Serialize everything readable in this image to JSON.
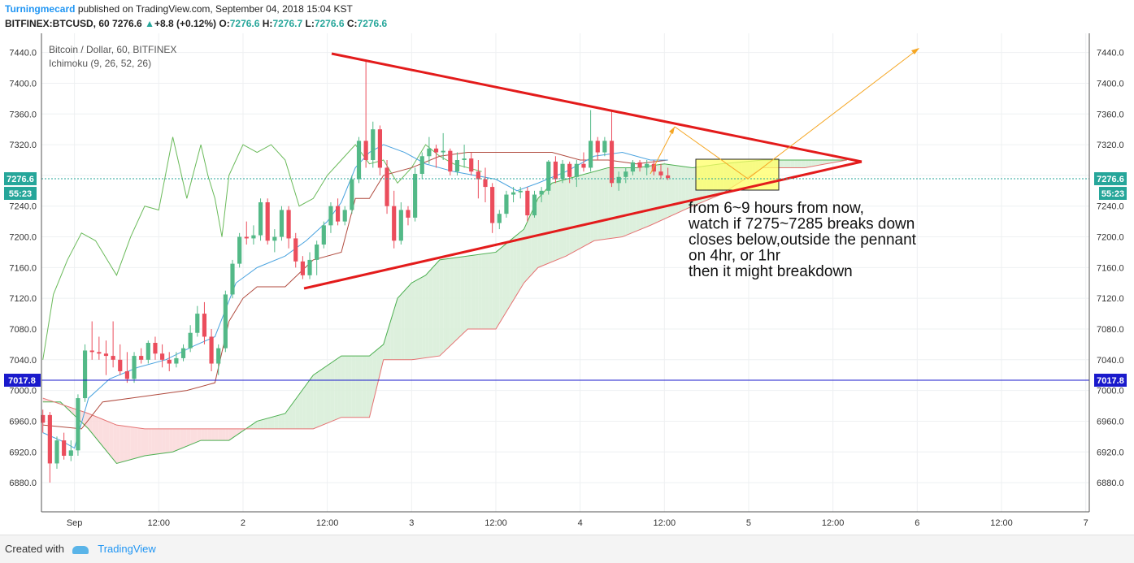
{
  "header": {
    "author": "Turningmecard",
    "published": "published on TradingView.com, September 04, 2018 15:04 KST",
    "symbol": "BITFINEX:BTCUSD, 60",
    "last": "7276.6",
    "change": "+8.8 (+0.12%)",
    "open_label": "O:",
    "open": "7276.6",
    "high_label": "H:",
    "high": "7276.7",
    "low_label": "L:",
    "low": "7276.6",
    "close_label": "C:",
    "close": "7276.6"
  },
  "legend": {
    "title": "Bitcoin / Dollar, 60, BITFINEX",
    "indicator": "Ichimoku (9, 26, 52, 26)"
  },
  "price_tags": {
    "last_price": "7276.6",
    "countdown": "55:23",
    "hline": "7017.8"
  },
  "annotation": {
    "lines": [
      "from 6~9 hours from now,",
      "watch if 7275~7285 breaks down",
      "closes below,outside the pennant",
      "on 4hr, or 1hr",
      "then it might breakdown"
    ]
  },
  "footer": {
    "created_with": "Created with",
    "logo": "TradingView"
  },
  "colors": {
    "up": "#53b987",
    "down": "#eb4d5c",
    "trendline": "#e31b1b",
    "arrow": "#f5a623",
    "hline": "#1a1acc",
    "cloud_bull": "#d9eed9",
    "cloud_bear": "#fbdadb",
    "tenkan": "#4aa3df",
    "kijun": "#b04a3e",
    "chikou": "#6aba5a",
    "highlight": "#ffff66"
  },
  "chart_data": {
    "type": "candlestick",
    "y_axis": {
      "ticks": [
        6880,
        6920,
        6960,
        7000,
        7040,
        7080,
        7120,
        7160,
        7200,
        7240,
        7280,
        7320,
        7360,
        7400,
        7440
      ],
      "tick_labels": [
        "6880.0",
        "6920.0",
        "6960.0",
        "7000.0",
        "7040.0",
        "7080.0",
        "7120.0",
        "7160.0",
        "7200.0",
        "7240.0",
        "7280.0",
        "7320.0",
        "7360.0",
        "7400.0",
        "7440.0"
      ],
      "range": [
        6842,
        7465
      ]
    },
    "x_axis": {
      "tick_labels": [
        "Sep",
        "12:00",
        "2",
        "12:00",
        "3",
        "12:00",
        "4",
        "12:00",
        "5",
        "12:00",
        "6",
        "12:00",
        "7"
      ],
      "tick_hours": [
        0,
        12,
        24,
        36,
        48,
        60,
        72,
        84,
        96,
        108,
        120,
        132,
        144
      ],
      "range_hours": [
        -4.7,
        144.5
      ]
    },
    "candles": [
      {
        "h": -4.5,
        "o": 6968,
        "hi": 6975,
        "lo": 6945,
        "c": 6958
      },
      {
        "h": -3.5,
        "o": 6968,
        "hi": 6972,
        "lo": 6880,
        "c": 6905
      },
      {
        "h": -2.5,
        "o": 6905,
        "hi": 6940,
        "lo": 6898,
        "c": 6935
      },
      {
        "h": -1.5,
        "o": 6935,
        "hi": 6945,
        "lo": 6910,
        "c": 6915
      },
      {
        "h": -0.5,
        "o": 6915,
        "hi": 6935,
        "lo": 6908,
        "c": 6922
      },
      {
        "h": 0.5,
        "o": 6922,
        "hi": 6995,
        "lo": 6915,
        "c": 6990
      },
      {
        "h": 1.5,
        "o": 6990,
        "hi": 7060,
        "lo": 6985,
        "c": 7052
      },
      {
        "h": 2.5,
        "o": 7052,
        "hi": 7090,
        "lo": 7040,
        "c": 7050
      },
      {
        "h": 3.5,
        "o": 7050,
        "hi": 7070,
        "lo": 7040,
        "c": 7048
      },
      {
        "h": 4.5,
        "o": 7048,
        "hi": 7065,
        "lo": 7020,
        "c": 7045
      },
      {
        "h": 5.5,
        "o": 7045,
        "hi": 7090,
        "lo": 7030,
        "c": 7040
      },
      {
        "h": 6.5,
        "o": 7040,
        "hi": 7060,
        "lo": 7020,
        "c": 7025
      },
      {
        "h": 7.5,
        "o": 7025,
        "hi": 7050,
        "lo": 7010,
        "c": 7015
      },
      {
        "h": 8.5,
        "o": 7015,
        "hi": 7050,
        "lo": 7010,
        "c": 7045
      },
      {
        "h": 9.5,
        "o": 7045,
        "hi": 7055,
        "lo": 7035,
        "c": 7040
      },
      {
        "h": 10.5,
        "o": 7040,
        "hi": 7065,
        "lo": 7035,
        "c": 7062
      },
      {
        "h": 11.5,
        "o": 7062,
        "hi": 7070,
        "lo": 7040,
        "c": 7048
      },
      {
        "h": 12.5,
        "o": 7048,
        "hi": 7060,
        "lo": 7030,
        "c": 7040
      },
      {
        "h": 13.5,
        "o": 7040,
        "hi": 7050,
        "lo": 7025,
        "c": 7035
      },
      {
        "h": 14.5,
        "o": 7035,
        "hi": 7050,
        "lo": 7030,
        "c": 7042
      },
      {
        "h": 15.5,
        "o": 7042,
        "hi": 7060,
        "lo": 7038,
        "c": 7055
      },
      {
        "h": 16.5,
        "o": 7055,
        "hi": 7085,
        "lo": 7050,
        "c": 7075
      },
      {
        "h": 17.5,
        "o": 7075,
        "hi": 7110,
        "lo": 7070,
        "c": 7100
      },
      {
        "h": 18.5,
        "o": 7100,
        "hi": 7115,
        "lo": 7060,
        "c": 7070
      },
      {
        "h": 19.5,
        "o": 7070,
        "hi": 7080,
        "lo": 7025,
        "c": 7035
      },
      {
        "h": 20.5,
        "o": 7035,
        "hi": 7060,
        "lo": 7020,
        "c": 7055
      },
      {
        "h": 21.5,
        "o": 7055,
        "hi": 7130,
        "lo": 7050,
        "c": 7125
      },
      {
        "h": 22.5,
        "o": 7125,
        "hi": 7170,
        "lo": 7120,
        "c": 7165
      },
      {
        "h": 23.5,
        "o": 7165,
        "hi": 7205,
        "lo": 7160,
        "c": 7200
      },
      {
        "h": 24.5,
        "o": 7200,
        "hi": 7220,
        "lo": 7190,
        "c": 7198
      },
      {
        "h": 25.5,
        "o": 7198,
        "hi": 7215,
        "lo": 7190,
        "c": 7202
      },
      {
        "h": 26.5,
        "o": 7202,
        "hi": 7250,
        "lo": 7195,
        "c": 7245
      },
      {
        "h": 27.5,
        "o": 7245,
        "hi": 7250,
        "lo": 7190,
        "c": 7195
      },
      {
        "h": 28.5,
        "o": 7195,
        "hi": 7210,
        "lo": 7180,
        "c": 7200
      },
      {
        "h": 29.5,
        "o": 7200,
        "hi": 7240,
        "lo": 7195,
        "c": 7235
      },
      {
        "h": 30.5,
        "o": 7235,
        "hi": 7240,
        "lo": 7185,
        "c": 7198
      },
      {
        "h": 31.5,
        "o": 7198,
        "hi": 7205,
        "lo": 7160,
        "c": 7168
      },
      {
        "h": 32.5,
        "o": 7168,
        "hi": 7175,
        "lo": 7145,
        "c": 7150
      },
      {
        "h": 33.5,
        "o": 7150,
        "hi": 7180,
        "lo": 7145,
        "c": 7170
      },
      {
        "h": 34.5,
        "o": 7170,
        "hi": 7195,
        "lo": 7150,
        "c": 7190
      },
      {
        "h": 35.5,
        "o": 7190,
        "hi": 7220,
        "lo": 7185,
        "c": 7215
      },
      {
        "h": 36.5,
        "o": 7215,
        "hi": 7245,
        "lo": 7205,
        "c": 7240
      },
      {
        "h": 37.5,
        "o": 7240,
        "hi": 7250,
        "lo": 7215,
        "c": 7220
      },
      {
        "h": 38.5,
        "o": 7220,
        "hi": 7240,
        "lo": 7215,
        "c": 7235
      },
      {
        "h": 39.5,
        "o": 7235,
        "hi": 7280,
        "lo": 7230,
        "c": 7275
      },
      {
        "h": 40.5,
        "o": 7275,
        "hi": 7330,
        "lo": 7270,
        "c": 7325
      },
      {
        "h": 41.5,
        "o": 7325,
        "hi": 7430,
        "lo": 7290,
        "c": 7300
      },
      {
        "h": 42.5,
        "o": 7300,
        "hi": 7350,
        "lo": 7290,
        "c": 7340
      },
      {
        "h": 43.5,
        "o": 7340,
        "hi": 7345,
        "lo": 7280,
        "c": 7290
      },
      {
        "h": 44.5,
        "o": 7290,
        "hi": 7300,
        "lo": 7230,
        "c": 7240
      },
      {
        "h": 45.5,
        "o": 7240,
        "hi": 7260,
        "lo": 7185,
        "c": 7195
      },
      {
        "h": 46.5,
        "o": 7195,
        "hi": 7245,
        "lo": 7190,
        "c": 7235
      },
      {
        "h": 47.5,
        "o": 7235,
        "hi": 7240,
        "lo": 7215,
        "c": 7225
      },
      {
        "h": 48.5,
        "o": 7225,
        "hi": 7290,
        "lo": 7220,
        "c": 7282
      },
      {
        "h": 49.5,
        "o": 7282,
        "hi": 7310,
        "lo": 7275,
        "c": 7305
      },
      {
        "h": 50.5,
        "o": 7305,
        "hi": 7330,
        "lo": 7295,
        "c": 7315
      },
      {
        "h": 51.5,
        "o": 7315,
        "hi": 7320,
        "lo": 7290,
        "c": 7310
      },
      {
        "h": 52.5,
        "o": 7310,
        "hi": 7335,
        "lo": 7300,
        "c": 7312
      },
      {
        "h": 53.5,
        "o": 7312,
        "hi": 7315,
        "lo": 7280,
        "c": 7285
      },
      {
        "h": 54.5,
        "o": 7285,
        "hi": 7310,
        "lo": 7280,
        "c": 7300
      },
      {
        "h": 55.5,
        "o": 7300,
        "hi": 7320,
        "lo": 7290,
        "c": 7302
      },
      {
        "h": 56.5,
        "o": 7302,
        "hi": 7310,
        "lo": 7280,
        "c": 7285
      },
      {
        "h": 57.5,
        "o": 7285,
        "hi": 7300,
        "lo": 7250,
        "c": 7275
      },
      {
        "h": 58.5,
        "o": 7275,
        "hi": 7290,
        "lo": 7245,
        "c": 7265
      },
      {
        "h": 59.5,
        "o": 7265,
        "hi": 7270,
        "lo": 7205,
        "c": 7218
      },
      {
        "h": 60.5,
        "o": 7218,
        "hi": 7235,
        "lo": 7210,
        "c": 7230
      },
      {
        "h": 61.5,
        "o": 7230,
        "hi": 7260,
        "lo": 7225,
        "c": 7255
      },
      {
        "h": 62.5,
        "o": 7255,
        "hi": 7265,
        "lo": 7245,
        "c": 7258
      },
      {
        "h": 63.5,
        "o": 7258,
        "hi": 7265,
        "lo": 7250,
        "c": 7260
      },
      {
        "h": 64.5,
        "o": 7260,
        "hi": 7265,
        "lo": 7220,
        "c": 7228
      },
      {
        "h": 65.5,
        "o": 7228,
        "hi": 7260,
        "lo": 7225,
        "c": 7255
      },
      {
        "h": 66.5,
        "o": 7255,
        "hi": 7265,
        "lo": 7245,
        "c": 7260
      },
      {
        "h": 67.5,
        "o": 7260,
        "hi": 7300,
        "lo": 7255,
        "c": 7298
      },
      {
        "h": 68.5,
        "o": 7298,
        "hi": 7305,
        "lo": 7270,
        "c": 7275
      },
      {
        "h": 69.5,
        "o": 7275,
        "hi": 7300,
        "lo": 7270,
        "c": 7295
      },
      {
        "h": 70.5,
        "o": 7295,
        "hi": 7298,
        "lo": 7270,
        "c": 7278
      },
      {
        "h": 71.5,
        "o": 7278,
        "hi": 7300,
        "lo": 7265,
        "c": 7295
      },
      {
        "h": 72.5,
        "o": 7295,
        "hi": 7310,
        "lo": 7285,
        "c": 7290
      },
      {
        "h": 73.5,
        "o": 7290,
        "hi": 7365,
        "lo": 7285,
        "c": 7325
      },
      {
        "h": 74.5,
        "o": 7325,
        "hi": 7330,
        "lo": 7300,
        "c": 7310
      },
      {
        "h": 75.5,
        "o": 7310,
        "hi": 7330,
        "lo": 7305,
        "c": 7325
      },
      {
        "h": 76.5,
        "o": 7325,
        "hi": 7365,
        "lo": 7265,
        "c": 7270
      },
      {
        "h": 77.5,
        "o": 7270,
        "hi": 7285,
        "lo": 7260,
        "c": 7278
      },
      {
        "h": 78.5,
        "o": 7278,
        "hi": 7290,
        "lo": 7270,
        "c": 7285
      },
      {
        "h": 79.5,
        "o": 7285,
        "hi": 7300,
        "lo": 7280,
        "c": 7297
      },
      {
        "h": 80.5,
        "o": 7297,
        "hi": 7300,
        "lo": 7285,
        "c": 7290
      },
      {
        "h": 81.5,
        "o": 7290,
        "hi": 7300,
        "lo": 7280,
        "c": 7295
      },
      {
        "h": 82.5,
        "o": 7295,
        "hi": 7300,
        "lo": 7280,
        "c": 7285
      },
      {
        "h": 83.5,
        "o": 7285,
        "hi": 7295,
        "lo": 7275,
        "c": 7280
      },
      {
        "h": 84.5,
        "o": 7280,
        "hi": 7290,
        "lo": 7274,
        "c": 7276.6
      }
    ],
    "tenkan": {
      "h": [
        -4.5,
        -2,
        0,
        2,
        5,
        9,
        13,
        17,
        20,
        23,
        26,
        30,
        33,
        36,
        38,
        40,
        42,
        44,
        47,
        50,
        54,
        57,
        60,
        63,
        66,
        70,
        74,
        78,
        82,
        84.5
      ],
      "v": [
        6945,
        6935,
        6925,
        6990,
        7015,
        7030,
        7040,
        7058,
        7070,
        7140,
        7160,
        7175,
        7195,
        7220,
        7245,
        7290,
        7310,
        7320,
        7310,
        7295,
        7285,
        7280,
        7275,
        7260,
        7270,
        7285,
        7305,
        7310,
        7300,
        7300
      ]
    },
    "kijun": {
      "h": [
        -4.5,
        1,
        4,
        8,
        12,
        16,
        20,
        22,
        24,
        26,
        30,
        34,
        38,
        40,
        42,
        44,
        48,
        52,
        56,
        60,
        64,
        68,
        72,
        76,
        80,
        84.5
      ],
      "v": [
        6955,
        6950,
        6985,
        6990,
        6995,
        7000,
        7010,
        7090,
        7120,
        7135,
        7135,
        7170,
        7180,
        7250,
        7250,
        7280,
        7290,
        7305,
        7310,
        7310,
        7310,
        7310,
        7300,
        7300,
        7295,
        7300
      ]
    },
    "chikou": {
      "h": [
        -4.5,
        -3,
        -1,
        1,
        3,
        6,
        8,
        10,
        12,
        14,
        16,
        18,
        19,
        20,
        21,
        22,
        24,
        26,
        28,
        30,
        32,
        34,
        36,
        38,
        40,
        42,
        44,
        46,
        48,
        50,
        52,
        54,
        56,
        58
      ],
      "v": [
        7040,
        7125,
        7170,
        7205,
        7195,
        7150,
        7200,
        7240,
        7235,
        7330,
        7250,
        7320,
        7280,
        7250,
        7200,
        7280,
        7320,
        7310,
        7320,
        7300,
        7240,
        7250,
        7280,
        7300,
        7320,
        7295,
        7300,
        7270,
        7290,
        7320,
        7305,
        7295,
        7290,
        7285
      ]
    },
    "span_a": {
      "h": [
        -4.5,
        -2,
        2,
        6,
        10,
        14,
        18,
        22,
        26,
        30,
        34,
        38,
        42,
        44,
        46,
        48,
        50,
        52,
        56,
        60,
        64,
        66,
        68,
        72,
        76,
        80,
        84,
        88,
        92,
        98,
        104,
        110
      ],
      "v": [
        6985,
        6985,
        6950,
        6905,
        6915,
        6920,
        6935,
        6935,
        6960,
        6970,
        7020,
        7045,
        7045,
        7060,
        7120,
        7140,
        7150,
        7170,
        7175,
        7180,
        7210,
        7250,
        7270,
        7280,
        7290,
        7290,
        7295,
        7290,
        7295,
        7300,
        7300,
        7300
      ]
    },
    "span_b": {
      "h": [
        -4.5,
        2,
        6,
        10,
        14,
        18,
        22,
        26,
        30,
        34,
        38,
        42,
        44,
        48,
        52,
        56,
        60,
        64,
        66,
        70,
        74,
        78,
        82,
        88,
        92,
        98,
        104,
        110
      ],
      "v": [
        6990,
        6970,
        6955,
        6950,
        6950,
        6950,
        6950,
        6950,
        6950,
        6950,
        6965,
        6965,
        7040,
        7040,
        7045,
        7080,
        7080,
        7140,
        7160,
        7175,
        7195,
        7200,
        7215,
        7240,
        7255,
        7290,
        7290,
        7300
      ]
    }
  }
}
